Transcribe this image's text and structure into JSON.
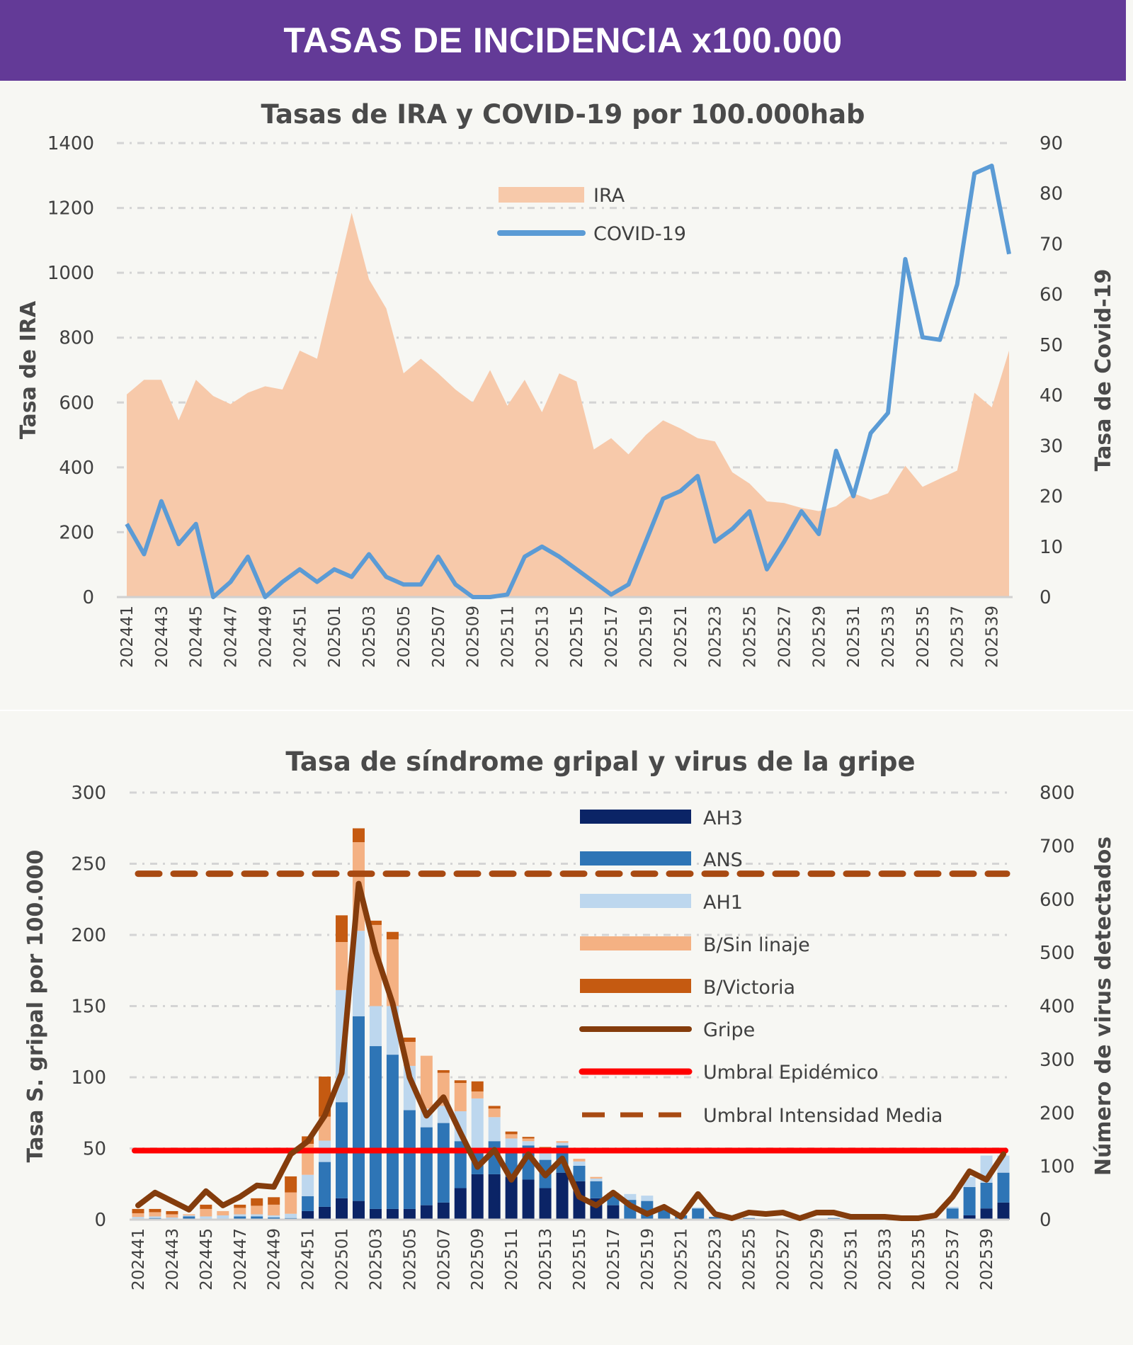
{
  "header": {
    "title": "TASAS DE INCIDENCIA x100.000"
  },
  "chart_data": [
    {
      "type": "area+line",
      "title": "Tasas de IRA y COVID-19 por 100.000hab",
      "ylabel": "Tasa de IRA",
      "y2label": "Tasa de Covid-19",
      "ylim": [
        0,
        1400
      ],
      "y2lim": [
        0,
        90
      ],
      "yticks": [
        0,
        200,
        400,
        600,
        800,
        1000,
        1200,
        1400
      ],
      "y2ticks": [
        0,
        10,
        20,
        30,
        40,
        50,
        60,
        70,
        80,
        90
      ],
      "grid": true,
      "legend_position": "top-center",
      "x": [
        "202441",
        "202442",
        "202443",
        "202444",
        "202445",
        "202446",
        "202447",
        "202448",
        "202449",
        "202450",
        "202451",
        "202452",
        "202501",
        "202502",
        "202503",
        "202504",
        "202505",
        "202506",
        "202507",
        "202508",
        "202509",
        "202510",
        "202511",
        "202512",
        "202513",
        "202514",
        "202515",
        "202516",
        "202517",
        "202518",
        "202519",
        "202520",
        "202521",
        "202522",
        "202523",
        "202524",
        "202525",
        "202526",
        "202527",
        "202528",
        "202529",
        "202530",
        "202531",
        "202532",
        "202533",
        "202534",
        "202535",
        "202536",
        "202537",
        "202538",
        "202539",
        "202540"
      ],
      "series": [
        {
          "name": "IRA",
          "type": "area",
          "axis": "left",
          "color": "#f7c9aa",
          "values": [
            625,
            670,
            670,
            545,
            670,
            620,
            595,
            630,
            650,
            640,
            760,
            735,
            960,
            1185,
            980,
            890,
            690,
            735,
            690,
            640,
            600,
            700,
            590,
            670,
            570,
            690,
            665,
            455,
            490,
            440,
            500,
            545,
            520,
            490,
            480,
            385,
            350,
            295,
            290,
            275,
            265,
            280,
            320,
            300,
            320,
            405,
            340,
            365,
            390,
            630,
            585,
            760
          ]
        },
        {
          "name": "COVID-19",
          "type": "line",
          "axis": "right",
          "color": "#5b9bd5",
          "values": [
            14.5,
            8.5,
            19,
            10.5,
            14.5,
            0,
            3,
            8,
            0,
            3,
            5.5,
            3,
            5.5,
            4,
            8.5,
            4,
            2.5,
            2.5,
            8,
            2.5,
            0,
            0,
            0.5,
            8,
            10,
            8,
            5.5,
            3,
            0.5,
            2.5,
            11,
            19.5,
            21,
            24,
            11,
            13.5,
            17,
            5.5,
            11,
            17,
            12.5,
            29,
            20,
            32.5,
            36.5,
            67,
            51.5,
            51,
            62,
            84,
            85.5,
            68
          ]
        }
      ]
    },
    {
      "type": "stacked-bar+line",
      "title": "Tasa de síndrome gripal y virus de la gripe",
      "ylabel": "Tasa S. gripal por 100.000",
      "y2label": "Número de virus detectados",
      "ylim": [
        0,
        300
      ],
      "y2lim": [
        0,
        800
      ],
      "yticks": [
        0,
        50,
        100,
        150,
        200,
        250,
        300
      ],
      "y2ticks": [
        0,
        100,
        200,
        300,
        400,
        500,
        600,
        700,
        800
      ],
      "grid": true,
      "legend_position": "top-right",
      "x": [
        "202441",
        "202442",
        "202443",
        "202444",
        "202445",
        "202446",
        "202447",
        "202448",
        "202449",
        "202450",
        "202451",
        "202452",
        "202501",
        "202502",
        "202503",
        "202504",
        "202505",
        "202506",
        "202507",
        "202508",
        "202509",
        "202510",
        "202511",
        "202512",
        "202513",
        "202514",
        "202515",
        "202516",
        "202517",
        "202518",
        "202519",
        "202520",
        "202521",
        "202522",
        "202523",
        "202524",
        "202525",
        "202526",
        "202527",
        "202528",
        "202529",
        "202530",
        "202531",
        "202532",
        "202533",
        "202534",
        "202535",
        "202536",
        "202537",
        "202538",
        "202539",
        "202540"
      ],
      "bars": [
        {
          "name": "AH3",
          "axis": "right",
          "color": "#0b2466",
          "values": [
            0,
            0,
            0,
            0,
            0,
            0,
            2,
            2,
            1,
            1,
            16,
            24,
            40,
            35,
            20,
            20,
            20,
            27,
            32,
            59,
            85,
            85,
            80,
            75,
            59,
            88,
            72,
            40,
            27,
            2,
            1,
            0,
            0,
            0,
            0,
            0,
            0,
            0,
            0,
            0,
            0,
            0,
            0,
            0,
            0,
            0,
            0,
            0,
            0,
            8,
            21,
            32
          ]
        },
        {
          "name": "ANS",
          "axis": "right",
          "color": "#2e75b6",
          "values": [
            2,
            3,
            1,
            6,
            2,
            2,
            4,
            4,
            3,
            2,
            28,
            84,
            180,
            346,
            305,
            289,
            185,
            146,
            149,
            88,
            48,
            62,
            53,
            64,
            53,
            51,
            29,
            32,
            18,
            35,
            34,
            21,
            8,
            21,
            5,
            3,
            3,
            2,
            2,
            0,
            2,
            3,
            2,
            2,
            2,
            2,
            0,
            2,
            21,
            53,
            48,
            56
          ]
        },
        {
          "name": "AH1",
          "axis": "right",
          "color": "#bdd7ee",
          "values": [
            3,
            3,
            3,
            2,
            4,
            6,
            4,
            4,
            4,
            8,
            40,
            40,
            210,
            160,
            75,
            91,
            83,
            35,
            32,
            56,
            94,
            45,
            19,
            8,
            13,
            5,
            8,
            5,
            3,
            11,
            10,
            0,
            0,
            2,
            0,
            0,
            0,
            0,
            0,
            0,
            0,
            0,
            0,
            0,
            0,
            0,
            0,
            0,
            3,
            19,
            51,
            32
          ]
        },
        {
          "name": "B/Sin linaje",
          "axis": "right",
          "color": "#f4b183",
          "values": [
            7,
            8,
            6,
            2,
            14,
            8,
            12,
            16,
            20,
            40,
            58,
            45,
            90,
            166,
            152,
            125,
            45,
            99,
            62,
            53,
            13,
            16,
            8,
            5,
            8,
            3,
            5,
            3,
            2,
            0,
            0,
            0,
            0,
            0,
            0,
            0,
            0,
            0,
            0,
            0,
            0,
            0,
            0,
            0,
            0,
            0,
            0,
            0,
            0,
            0,
            0,
            0
          ]
        },
        {
          "name": "B/Victoria",
          "axis": "right",
          "color": "#c55a11",
          "values": [
            8,
            6,
            6,
            0,
            8,
            0,
            6,
            14,
            14,
            30,
            14,
            75,
            50,
            26,
            8,
            14,
            8,
            0,
            5,
            5,
            19,
            5,
            5,
            3,
            3,
            0,
            0,
            0,
            0,
            0,
            0,
            0,
            0,
            0,
            0,
            0,
            0,
            0,
            0,
            0,
            0,
            0,
            0,
            0,
            0,
            0,
            0,
            0,
            0,
            0,
            0,
            0
          ]
        }
      ],
      "lines": [
        {
          "name": "Gripe",
          "axis": "left",
          "color": "#843c0c",
          "style": "solid",
          "values": [
            10,
            19,
            13,
            7,
            20,
            10,
            16,
            24,
            23,
            46,
            55,
            73,
            103,
            236,
            188,
            152,
            100,
            73,
            86,
            61,
            37,
            49,
            28,
            46,
            31,
            43,
            16,
            10,
            19,
            10,
            4,
            9,
            2,
            18,
            4,
            1,
            5,
            4,
            5,
            1,
            5,
            5,
            2,
            2,
            2,
            1,
            1,
            3,
            16,
            34,
            28,
            46
          ]
        },
        {
          "name": "Umbral Epidémico",
          "axis": "left",
          "color": "#ff0000",
          "style": "solid",
          "value": 48.5
        },
        {
          "name": "Umbral Intensidad Media",
          "axis": "left",
          "color": "#a84a12",
          "style": "dashed",
          "value": 243
        }
      ]
    }
  ]
}
